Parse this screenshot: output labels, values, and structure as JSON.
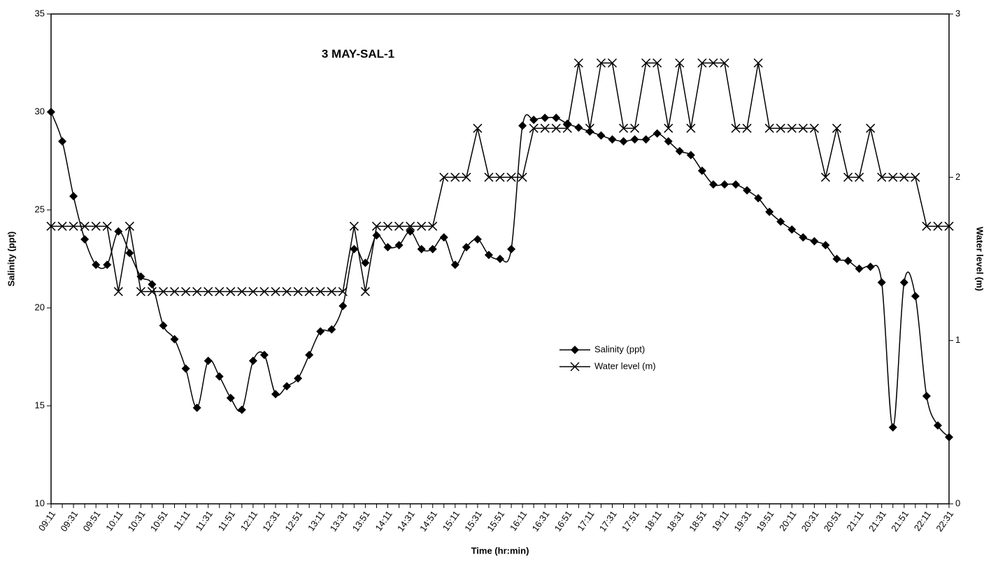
{
  "chart_data": {
    "type": "line",
    "title": "3 MAY-SAL-1",
    "x_label": "Time (hr:min)",
    "y_label": "Salinity (ppt)",
    "y2_label": "Water level (m)",
    "categories": [
      "09:11",
      null,
      "09:31",
      null,
      "09:51",
      null,
      "10:11",
      null,
      "10:31",
      null,
      "10:51",
      null,
      "11:11",
      null,
      "11:31",
      null,
      "11:51",
      null,
      "12:11",
      null,
      "12:31",
      null,
      "12:51",
      null,
      "13:11",
      null,
      "13:31",
      null,
      "13:51",
      null,
      "14:11",
      null,
      "14:31",
      null,
      "14:51",
      null,
      "15:11",
      null,
      "15:31",
      null,
      "15:51",
      null,
      "16:11",
      null,
      "16:31",
      null,
      "16:51",
      null,
      "17:11",
      null,
      "17:31",
      null,
      "17:51",
      null,
      "18:11",
      null,
      "18:31",
      null,
      "18:51",
      null,
      "19:11",
      null,
      "19:31",
      null,
      "19:51",
      null,
      "20:11",
      null,
      "20:31",
      null,
      "20:51",
      null,
      "21:11",
      null,
      "21:31",
      null,
      "21:51",
      null,
      "22:11",
      null,
      "22:31"
    ],
    "series": [
      {
        "name": "Salinity (ppt)",
        "color": "#000000",
        "marker": "diamond",
        "smooth": true,
        "values": [
          30.0,
          28.5,
          25.7,
          23.5,
          22.2,
          22.2,
          23.9,
          22.8,
          21.6,
          21.2,
          19.1,
          18.4,
          16.9,
          14.9,
          17.3,
          16.5,
          15.4,
          14.8,
          17.3,
          17.6,
          15.6,
          16.0,
          16.4,
          17.6,
          18.8,
          18.9,
          20.1,
          23.0,
          22.3,
          23.7,
          23.1,
          23.2,
          23.9,
          23.0,
          23.0,
          23.6,
          22.2,
          23.1,
          23.5,
          22.7,
          22.5,
          23.0,
          29.3,
          29.6,
          29.7,
          29.7,
          29.4,
          29.2,
          29.0,
          28.8,
          28.6,
          28.5,
          28.6,
          28.6,
          28.9,
          28.5,
          28.0,
          27.8,
          27.0,
          26.3,
          26.3,
          26.3,
          26.0,
          25.6,
          24.9,
          24.4,
          24.0,
          23.6,
          23.4,
          23.2,
          22.5,
          22.4,
          22.0,
          22.1,
          21.3,
          13.9,
          21.3,
          20.6,
          15.5,
          14.0,
          13.4
        ]
      },
      {
        "name": "Water level (m)",
        "color": "#000000",
        "marker": "x",
        "smooth": false,
        "axis": "y2",
        "values": [
          1.7,
          1.7,
          1.7,
          1.7,
          1.7,
          1.7,
          1.3,
          1.7,
          1.3,
          1.3,
          1.3,
          1.3,
          1.3,
          1.3,
          1.3,
          1.3,
          1.3,
          1.3,
          1.3,
          1.3,
          1.3,
          1.3,
          1.3,
          1.3,
          1.3,
          1.3,
          1.3,
          1.7,
          1.3,
          1.7,
          1.7,
          1.7,
          1.7,
          1.7,
          1.7,
          2.0,
          2.0,
          2.0,
          2.3,
          2.0,
          2.0,
          2.0,
          2.0,
          2.3,
          2.3,
          2.3,
          2.3,
          2.7,
          2.3,
          2.7,
          2.7,
          2.3,
          2.3,
          2.7,
          2.7,
          2.3,
          2.7,
          2.3,
          2.7,
          2.7,
          2.7,
          2.3,
          2.3,
          2.7,
          2.3,
          2.3,
          2.3,
          2.3,
          2.3,
          2.0,
          2.3,
          2.0,
          2.0,
          2.3,
          2.0,
          2.0,
          2.0,
          2.0,
          1.7,
          1.7,
          1.7
        ]
      }
    ],
    "ylim": [
      10,
      35
    ],
    "yticks": [
      10,
      15,
      20,
      25,
      30,
      35
    ],
    "y2lim": [
      0,
      3
    ],
    "y2ticks": [
      0,
      1,
      2,
      3
    ],
    "grid": false,
    "legend": "center"
  }
}
